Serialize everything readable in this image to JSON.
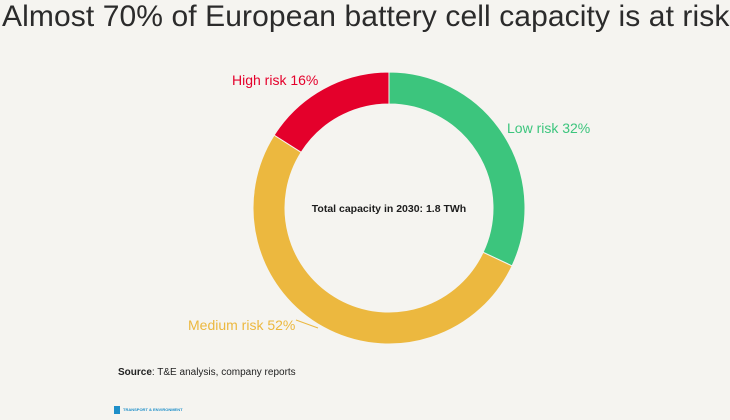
{
  "title": "Almost 70% of European battery cell capacity is at risk",
  "chart_data": {
    "type": "pie",
    "variant": "donut",
    "title": "Almost 70% of European battery cell capacity is at risk",
    "center_label": "Total capacity in 2030: 1.8 TWh",
    "slices": [
      {
        "name": "Low risk",
        "value": 32,
        "label": "Low risk 32%",
        "color": "#3cc57d"
      },
      {
        "name": "Medium risk",
        "value": 52,
        "label": "Medium risk 52%",
        "color": "#ecb83f"
      },
      {
        "name": "High risk",
        "value": 16,
        "label": "High risk 16%",
        "color": "#e4002b"
      }
    ],
    "start": "12 o'clock",
    "direction": "clockwise"
  },
  "source": {
    "prefix": "Source",
    "text": ": T&E analysis, company reports"
  },
  "logo": {
    "name": "TRANSPORT & ENVIRONMENT",
    "icon": "te-logo-icon"
  }
}
